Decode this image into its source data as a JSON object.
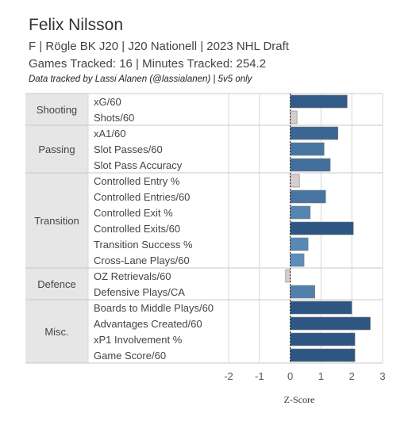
{
  "header": {
    "title": "Felix Nilsson",
    "line1": "F | Rögle BK J20 | J20 Nationell | 2023 NHL Draft",
    "line2": "Games Tracked: 16 | Minutes Tracked: 254.2",
    "credit": "Data tracked by Lassi Alanen (@lassialanen) | 5v5 only"
  },
  "colors": {
    "bar_low": "#6a9cc9",
    "bar_high": "#2d5682",
    "bar_negative": "#d9cccc",
    "category_bg": "#e6e6e6",
    "grid": "#d9d9d9",
    "zero_line": "#333333"
  },
  "chart_data": {
    "type": "bar",
    "orientation": "horizontal",
    "xlabel": "Z-Score",
    "ylabel": "",
    "xlim": [
      -2,
      3
    ],
    "xticks": [
      -2,
      -1,
      0,
      1,
      2,
      3
    ],
    "grid": true,
    "groups": [
      {
        "name": "Shooting",
        "metrics": [
          {
            "label": "xG/60",
            "value": 1.85
          },
          {
            "label": "Shots/60",
            "value": 0.22
          }
        ]
      },
      {
        "name": "Passing",
        "metrics": [
          {
            "label": "xA1/60",
            "value": 1.55
          },
          {
            "label": "Slot Passes/60",
            "value": 1.1
          },
          {
            "label": "Slot Pass Accuracy",
            "value": 1.3
          }
        ]
      },
      {
        "name": "Transition",
        "metrics": [
          {
            "label": "Controlled Entry %",
            "value": 0.3
          },
          {
            "label": "Controlled Entries/60",
            "value": 1.15
          },
          {
            "label": "Controlled Exit %",
            "value": 0.65
          },
          {
            "label": "Controlled Exits/60",
            "value": 2.05
          },
          {
            "label": "Transition Success %",
            "value": 0.58
          },
          {
            "label": "Cross-Lane Plays/60",
            "value": 0.45
          }
        ]
      },
      {
        "name": "Defence",
        "metrics": [
          {
            "label": "OZ Retrievals/60",
            "value": -0.15
          },
          {
            "label": "Defensive Plays/CA",
            "value": 0.8
          }
        ]
      },
      {
        "name": "Misc.",
        "metrics": [
          {
            "label": "Boards to Middle Plays/60",
            "value": 2.0
          },
          {
            "label": "Advantages Created/60",
            "value": 2.6
          },
          {
            "label": "xP1 Involvement %",
            "value": 2.1
          },
          {
            "label": "Game Score/60",
            "value": 2.1
          }
        ]
      }
    ]
  }
}
